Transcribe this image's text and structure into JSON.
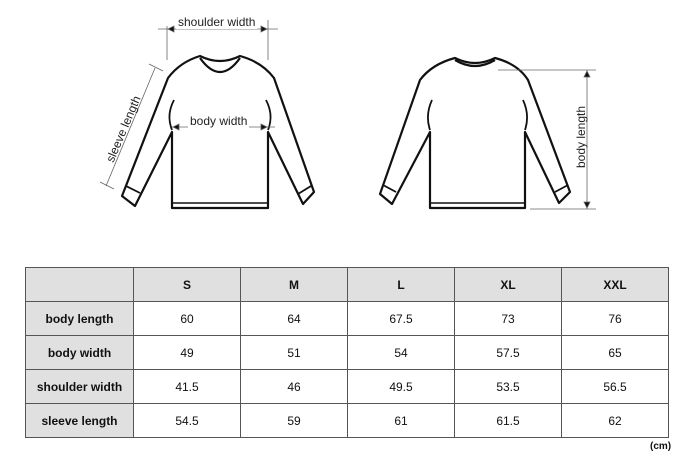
{
  "diagram": {
    "front_labels": {
      "shoulder_width": "shoulder width",
      "body_width": "body width",
      "sleeve_length": "sleeve length"
    },
    "back_labels": {
      "body_length": "body length"
    }
  },
  "table": {
    "sizes": [
      "S",
      "M",
      "L",
      "XL",
      "XXL"
    ],
    "rows": [
      {
        "label": "body length",
        "values": [
          "60",
          "64",
          "67.5",
          "73",
          "76"
        ]
      },
      {
        "label": "body width",
        "values": [
          "49",
          "51",
          "54",
          "57.5",
          "65"
        ]
      },
      {
        "label": "shoulder width",
        "values": [
          "41.5",
          "46",
          "49.5",
          "53.5",
          "56.5"
        ]
      },
      {
        "label": "sleeve length",
        "values": [
          "54.5",
          "59",
          "61",
          "61.5",
          "62"
        ]
      }
    ],
    "unit": "(cm)"
  },
  "colors": {
    "header_bg": "#e0e0e0",
    "line": "#111111"
  }
}
